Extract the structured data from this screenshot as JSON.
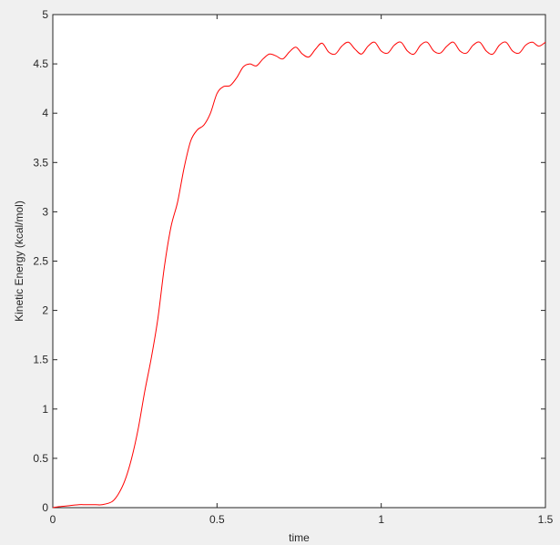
{
  "chart_data": {
    "type": "line",
    "title": "",
    "xlabel": "time",
    "ylabel": "Kinetic Energy (kcal/mol)",
    "xlim": [
      0,
      1.5
    ],
    "ylim": [
      0,
      5
    ],
    "grid": false,
    "xticks": [
      0,
      0.5,
      1,
      1.5
    ],
    "xtick_labels": [
      "0",
      "0.5",
      "1",
      "1.5"
    ],
    "yticks": [
      0,
      0.5,
      1,
      1.5,
      2,
      2.5,
      3,
      3.5,
      4,
      4.5,
      5
    ],
    "ytick_labels": [
      "0",
      "0.5",
      "1",
      "1.5",
      "2",
      "2.5",
      "3",
      "3.5",
      "4",
      "4.5",
      "5"
    ],
    "series": [
      {
        "color": "#ff0000",
        "x": [
          0,
          0.02,
          0.05,
          0.08,
          0.1,
          0.13,
          0.15,
          0.18,
          0.2,
          0.22,
          0.24,
          0.26,
          0.28,
          0.3,
          0.32,
          0.34,
          0.36,
          0.38,
          0.4,
          0.42,
          0.44,
          0.46,
          0.48,
          0.5,
          0.52,
          0.54,
          0.56,
          0.58,
          0.6,
          0.62,
          0.64,
          0.66,
          0.68,
          0.7,
          0.72,
          0.74,
          0.76,
          0.78,
          0.8,
          0.82,
          0.84,
          0.86,
          0.88,
          0.9,
          0.92,
          0.94,
          0.96,
          0.98,
          1.0,
          1.02,
          1.04,
          1.06,
          1.08,
          1.1,
          1.12,
          1.14,
          1.16,
          1.18,
          1.2,
          1.22,
          1.24,
          1.26,
          1.28,
          1.3,
          1.32,
          1.34,
          1.36,
          1.38,
          1.4,
          1.42,
          1.44,
          1.46,
          1.48,
          1.5
        ],
        "y": [
          0,
          0.01,
          0.02,
          0.03,
          0.03,
          0.03,
          0.03,
          0.06,
          0.14,
          0.28,
          0.5,
          0.8,
          1.18,
          1.52,
          1.92,
          2.45,
          2.85,
          3.1,
          3.45,
          3.72,
          3.83,
          3.88,
          4.0,
          4.2,
          4.27,
          4.28,
          4.36,
          4.47,
          4.5,
          4.48,
          4.55,
          4.6,
          4.58,
          4.55,
          4.62,
          4.67,
          4.6,
          4.57,
          4.65,
          4.71,
          4.62,
          4.6,
          4.68,
          4.72,
          4.65,
          4.6,
          4.68,
          4.72,
          4.63,
          4.61,
          4.69,
          4.72,
          4.63,
          4.6,
          4.69,
          4.72,
          4.63,
          4.61,
          4.68,
          4.72,
          4.63,
          4.61,
          4.69,
          4.72,
          4.63,
          4.6,
          4.69,
          4.72,
          4.63,
          4.61,
          4.69,
          4.72,
          4.68,
          4.72
        ]
      }
    ]
  }
}
